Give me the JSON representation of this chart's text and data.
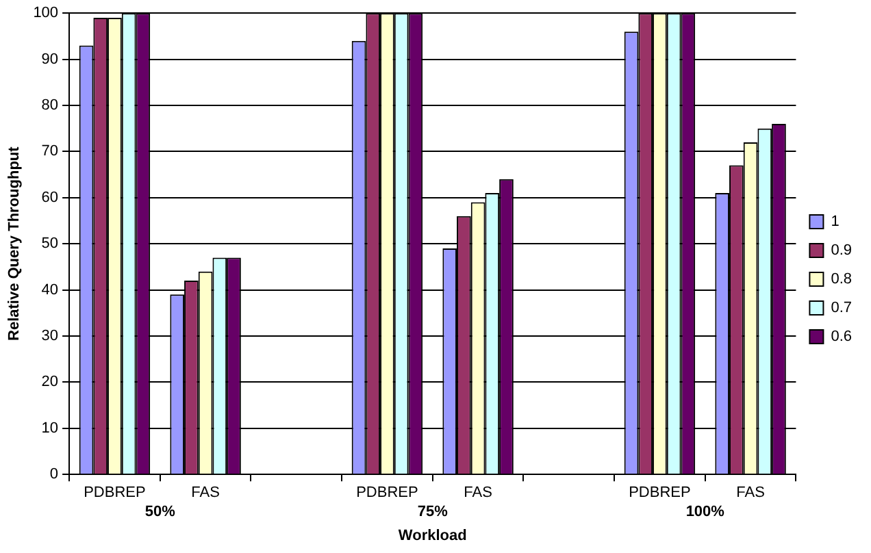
{
  "chart_data": {
    "type": "bar",
    "xlabel": "Workload",
    "ylabel": "Relative Query Throughput",
    "categories": [
      "PDBREP",
      "FAS",
      null,
      "PDBREP",
      "FAS",
      null,
      "PDBREP",
      "FAS"
    ],
    "series": [
      {
        "name": "1",
        "color": "#9999ff",
        "values": [
          93,
          39,
          null,
          94,
          49,
          null,
          96,
          61
        ]
      },
      {
        "name": "0.9",
        "color": "#993366",
        "values": [
          99,
          42,
          null,
          100,
          56,
          null,
          100,
          67
        ]
      },
      {
        "name": "0.8",
        "color": "#ffffcc",
        "values": [
          99,
          44,
          null,
          100,
          59,
          null,
          100,
          72
        ]
      },
      {
        "name": "0.7",
        "color": "#ccffff",
        "values": [
          100,
          47,
          null,
          100,
          61,
          null,
          100,
          75
        ]
      },
      {
        "name": "0.6",
        "color": "#660066",
        "values": [
          100,
          47,
          null,
          100,
          64,
          null,
          100,
          76
        ]
      }
    ],
    "annotations": [
      "50%",
      "75%",
      "100%"
    ],
    "ylim": [
      0,
      100
    ],
    "yticks": [
      0,
      10,
      20,
      30,
      40,
      50,
      60,
      70,
      80,
      90,
      100
    ],
    "grid": "y",
    "legend": "right"
  }
}
